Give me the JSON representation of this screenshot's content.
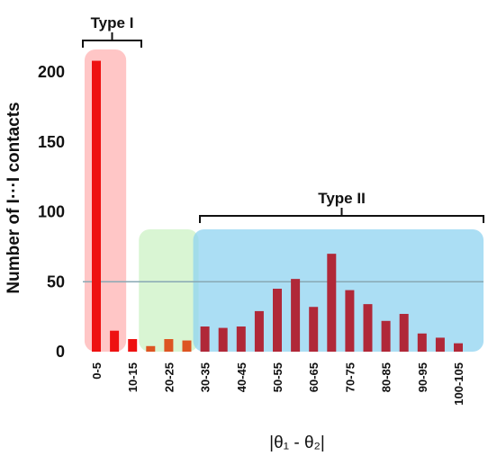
{
  "chart_data": {
    "type": "bar",
    "title": "",
    "xlabel": "|θ₁ - θ₂|",
    "ylabel": "Number of I···I contacts",
    "ylim": [
      0,
      220
    ],
    "yticks": [
      0,
      50,
      100,
      150,
      200
    ],
    "reference_line": 50,
    "categories": [
      "0-5",
      "5-10",
      "10-15",
      "15-20",
      "20-25",
      "25-30",
      "30-35",
      "35-40",
      "40-45",
      "45-50",
      "50-55",
      "55-60",
      "60-65",
      "65-70",
      "70-75",
      "75-80",
      "80-85",
      "85-90",
      "90-95",
      "95-100",
      "100-105"
    ],
    "tick_labels": [
      "0-5",
      "10-15",
      "20-25",
      "30-35",
      "40-45",
      "50-55",
      "60-65",
      "70-75",
      "80-85",
      "90-95",
      "100-105"
    ],
    "values": [
      208,
      15,
      9,
      4,
      9,
      8,
      18,
      17,
      18,
      29,
      45,
      52,
      32,
      70,
      44,
      34,
      22,
      27,
      13,
      10,
      6
    ],
    "regions": [
      {
        "label": "Type I",
        "from": "0-5",
        "to": "5-10",
        "color": "#ffb3b3"
      },
      {
        "label": "",
        "from": "15-20",
        "to": "25-30",
        "color": "#ccf2c4"
      },
      {
        "label": "Type II",
        "from": "30-35",
        "to": "100-105",
        "color": "#8fd3f0"
      }
    ],
    "colors": {
      "type1_bar": "#ee1111",
      "mid_bar": "#dd5522",
      "type2_bar": "#b02838",
      "reference_line": "#88a8b4"
    }
  }
}
